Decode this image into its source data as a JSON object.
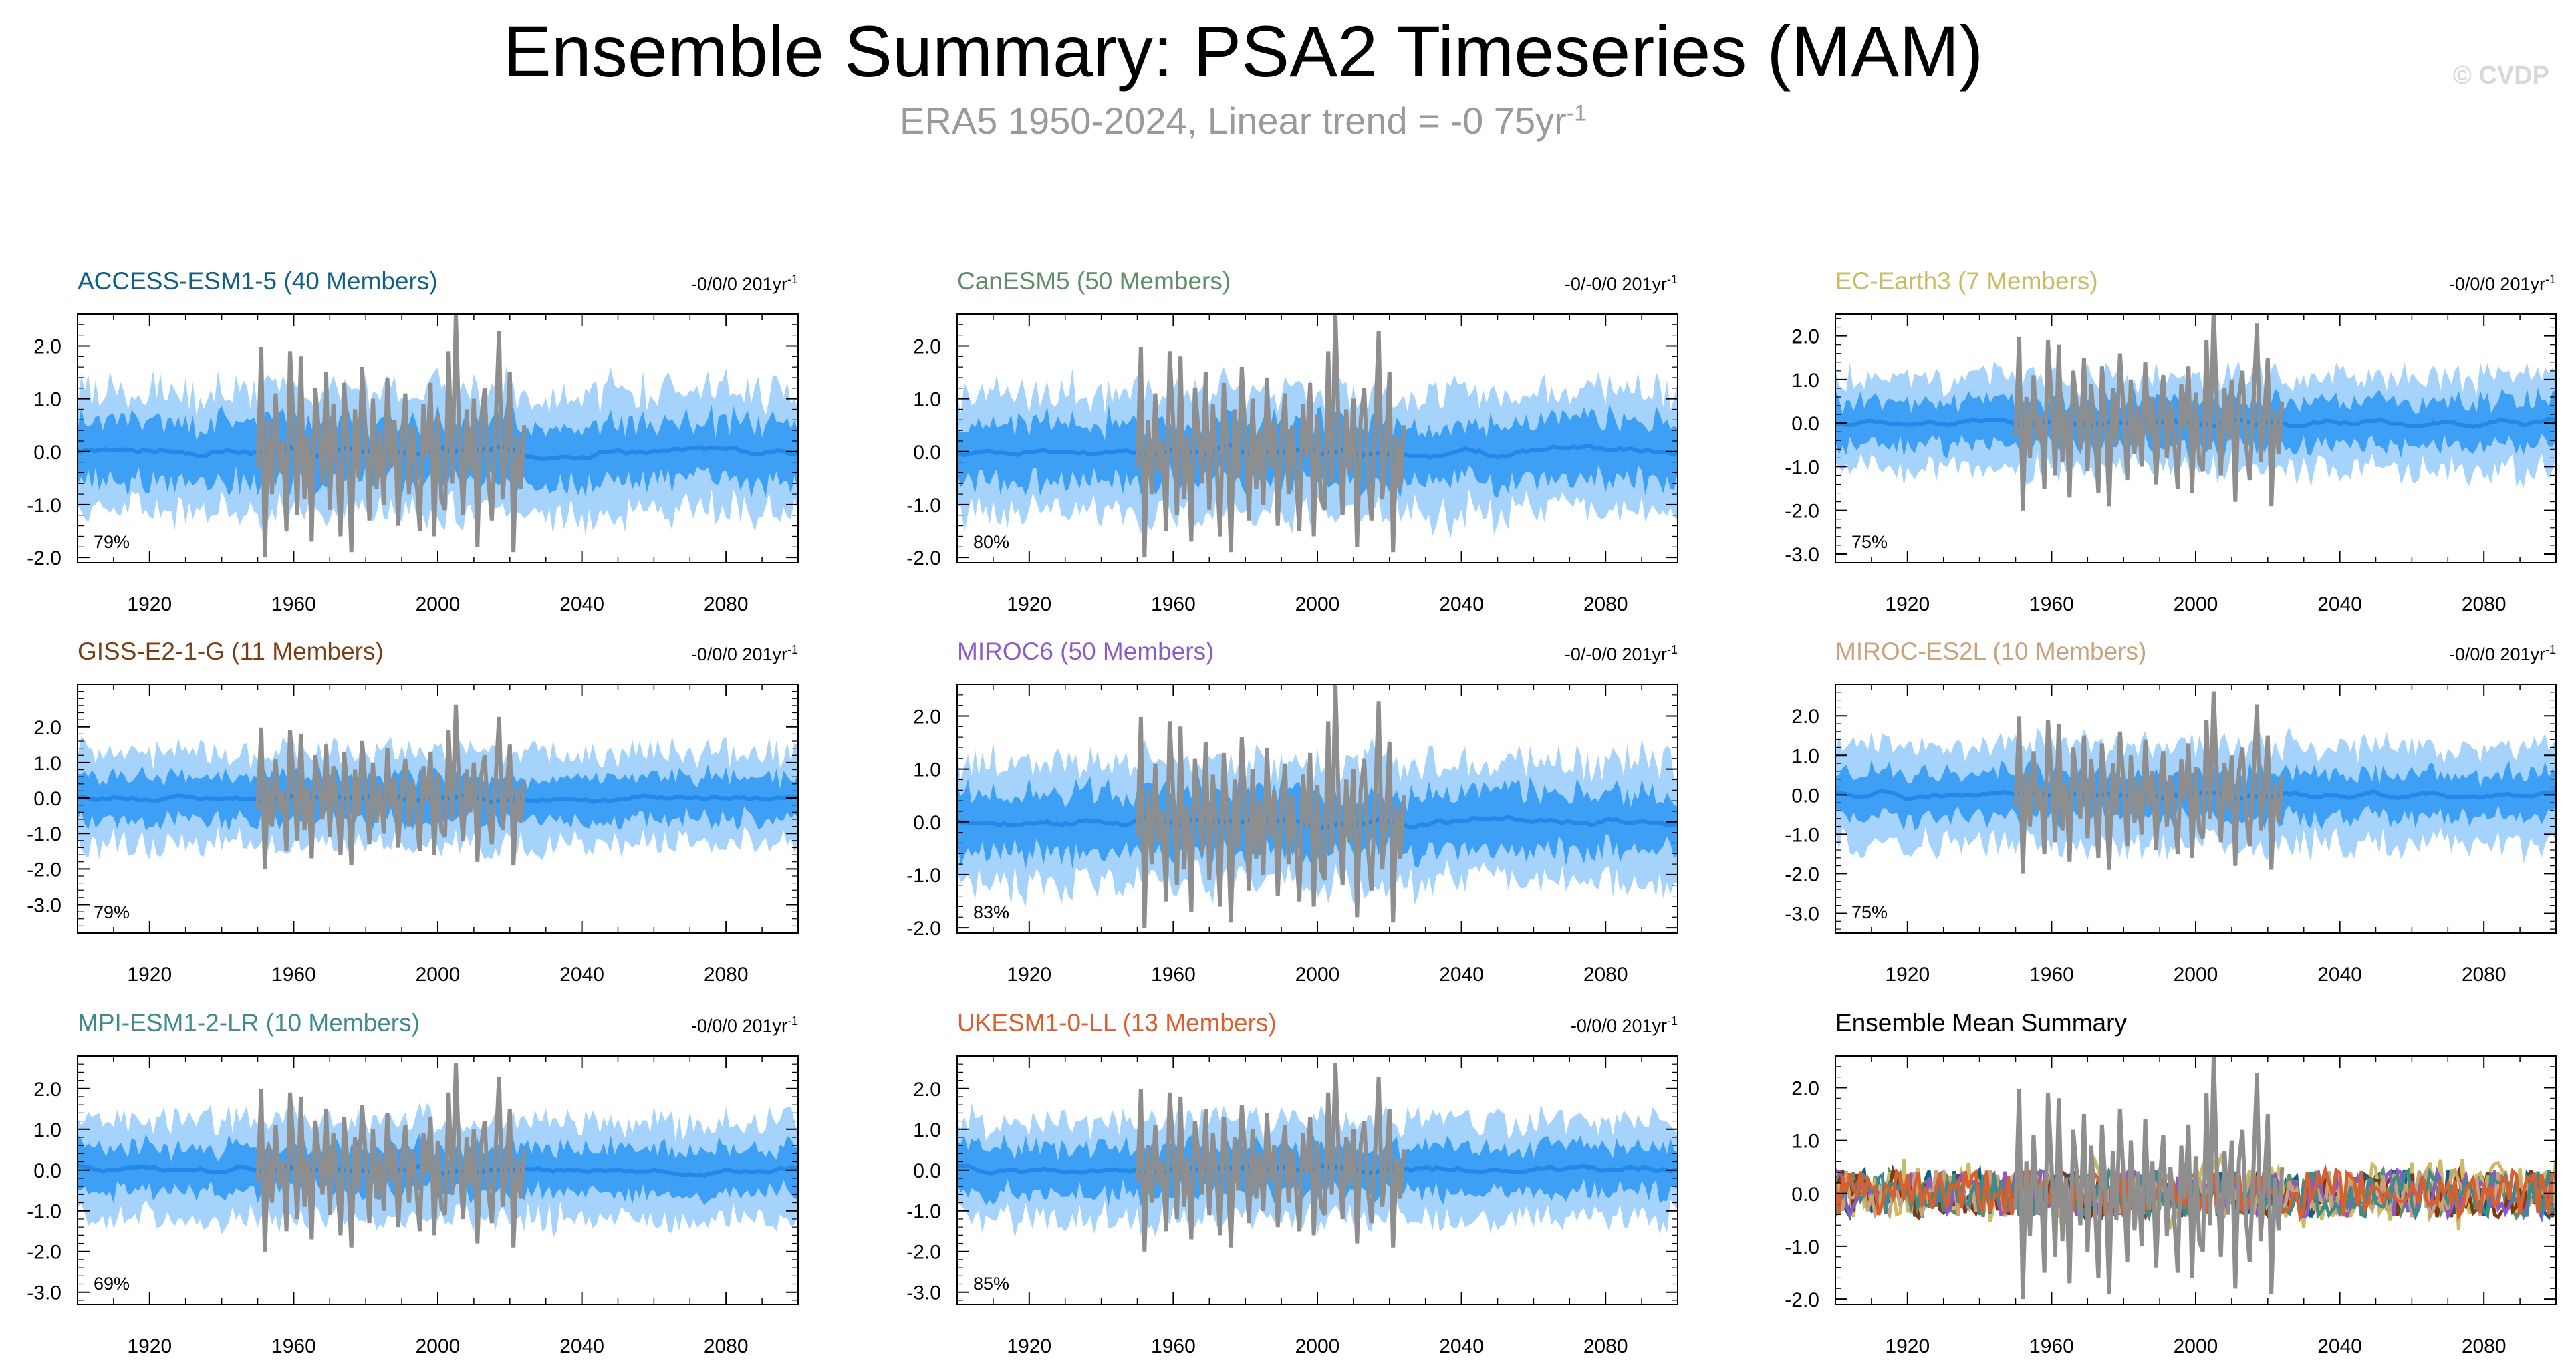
{
  "title": "Ensemble Summary: PSA2 Timeseries (MAM)",
  "subtitle": "ERA5 1950-2024, Linear trend = -0 75yr",
  "subtitle_sup": "-1",
  "copyright": "© CVDP",
  "trend_sup": "-1",
  "colors": {
    "outer_band": "#a6d3fb",
    "inner_band": "#3ea0f5",
    "ens_mean": "#2388e8",
    "obs": "#8e8e8e"
  },
  "chart_data": [
    {
      "type": "area",
      "title": "ACCESS-ESM1-5 (40 Members)",
      "title_color": "#0e5f85",
      "trend_label": "-0/0/0 201yr",
      "percent": "79%",
      "xlim": [
        1900,
        2100
      ],
      "ylim": [
        -2.1,
        2.6
      ],
      "yticks": [
        2,
        1,
        0,
        -1,
        -2
      ],
      "ytick_labels": [
        "2.0",
        "1.0",
        "0.0",
        "-1.0",
        "-2.0"
      ],
      "xticks": [
        1920,
        1960,
        2000,
        2040,
        2080
      ],
      "ens_mean_range": [
        1900,
        2100
      ],
      "obs_range": [
        1950,
        2024
      ],
      "inner_halfwidth": 0.55,
      "outer_halfwidth": 1.15,
      "seed": 3
    },
    {
      "type": "area",
      "title": "CanESM5 (50 Members)",
      "title_color": "#5e8d66",
      "trend_label": "-0/-0/0 201yr",
      "percent": "80%",
      "xlim": [
        1900,
        2100
      ],
      "ylim": [
        -2.1,
        2.6
      ],
      "yticks": [
        2,
        1,
        0,
        -1,
        -2
      ],
      "ytick_labels": [
        "2.0",
        "1.0",
        "0.0",
        "-1.0",
        "-2.0"
      ],
      "xticks": [
        1920,
        1960,
        2000,
        2040,
        2080
      ],
      "ens_mean_range": [
        1900,
        2100
      ],
      "obs_range": [
        1950,
        2024
      ],
      "inner_halfwidth": 0.55,
      "outer_halfwidth": 1.15,
      "seed": 7
    },
    {
      "type": "area",
      "title": "EC-Earth3 (7 Members)",
      "title_color": "#c9bc64",
      "trend_label": "-0/0/0 201yr",
      "percent": "75%",
      "xlim": [
        1900,
        2100
      ],
      "ylim": [
        -3.2,
        2.5
      ],
      "yticks": [
        2,
        1,
        0,
        -1,
        -2,
        -3
      ],
      "ytick_labels": [
        "2.0",
        "1.0",
        "0.0",
        "-1.0",
        "-2.0",
        "-3.0"
      ],
      "xticks": [
        1920,
        1960,
        2000,
        2040,
        2080
      ],
      "ens_mean_range": [
        1900,
        2100
      ],
      "obs_range": [
        1950,
        2024
      ],
      "inner_halfwidth": 0.5,
      "outer_halfwidth": 1.05,
      "seed": 11
    },
    {
      "type": "area",
      "title": "GISS-E2-1-G (11 Members)",
      "title_color": "#7b3c14",
      "trend_label": "-0/0/0 201yr",
      "percent": "79%",
      "xlim": [
        1900,
        2100
      ],
      "ylim": [
        -3.8,
        3.2
      ],
      "yticks": [
        2,
        1,
        0,
        -1,
        -2,
        -3
      ],
      "ytick_labels": [
        "2.0",
        "1.0",
        "0.0",
        "-1.0",
        "-2.0",
        "-3.0"
      ],
      "xticks": [
        1920,
        1960,
        2000,
        2040,
        2080
      ],
      "ens_mean_range": [
        1900,
        2100
      ],
      "obs_range": [
        1950,
        2024
      ],
      "inner_halfwidth": 0.6,
      "outer_halfwidth": 1.3,
      "seed": 13
    },
    {
      "type": "area",
      "title": "MIROC6 (50 Members)",
      "title_color": "#8a5ac9",
      "trend_label": "-0/-0/0 201yr",
      "percent": "83%",
      "xlim": [
        1900,
        2100
      ],
      "ylim": [
        -2.1,
        2.6
      ],
      "yticks": [
        2,
        1,
        0,
        -1,
        -2
      ],
      "ytick_labels": [
        "2.0",
        "1.0",
        "0.0",
        "-1.0",
        "-2.0"
      ],
      "xticks": [
        1920,
        1960,
        2000,
        2040,
        2080
      ],
      "ens_mean_range": [
        1900,
        2100
      ],
      "obs_range": [
        1950,
        2024
      ],
      "inner_halfwidth": 0.55,
      "outer_halfwidth": 1.15,
      "seed": 17
    },
    {
      "type": "area",
      "title": "MIROC-ES2L (10 Members)",
      "title_color": "#c9a27a",
      "trend_label": "-0/0/0 201yr",
      "percent": "75%",
      "xlim": [
        1900,
        2100
      ],
      "ylim": [
        -3.5,
        2.8
      ],
      "yticks": [
        2,
        1,
        0,
        -1,
        -2,
        -3
      ],
      "ytick_labels": [
        "2.0",
        "1.0",
        "0.0",
        "-1.0",
        "-2.0",
        "-3.0"
      ],
      "xticks": [
        1920,
        1960,
        2000,
        2040,
        2080
      ],
      "ens_mean_range": [
        1900,
        2100
      ],
      "obs_range": [
        1950,
        2024
      ],
      "inner_halfwidth": 0.55,
      "outer_halfwidth": 1.25,
      "seed": 19
    },
    {
      "type": "area",
      "title": "MPI-ESM1-2-LR (10 Members)",
      "title_color": "#3f8a8a",
      "trend_label": "-0/0/0 201yr",
      "percent": "69%",
      "xlim": [
        1900,
        2100
      ],
      "ylim": [
        -3.3,
        2.8
      ],
      "yticks": [
        2,
        1,
        0,
        -1,
        -2,
        -3
      ],
      "ytick_labels": [
        "2.0",
        "1.0",
        "0.0",
        "-1.0",
        "-2.0",
        "-3.0"
      ],
      "xticks": [
        1920,
        1960,
        2000,
        2040,
        2080
      ],
      "ens_mean_range": [
        1900,
        2100
      ],
      "obs_range": [
        1950,
        2024
      ],
      "inner_halfwidth": 0.55,
      "outer_halfwidth": 1.2,
      "seed": 23
    },
    {
      "type": "area",
      "title": "UKESM1-0-LL (13 Members)",
      "title_color": "#d9602e",
      "trend_label": "-0/0/0 201yr",
      "percent": "85%",
      "xlim": [
        1900,
        2100
      ],
      "ylim": [
        -3.3,
        2.8
      ],
      "yticks": [
        2,
        1,
        0,
        -1,
        -2,
        -3
      ],
      "ytick_labels": [
        "2.0",
        "1.0",
        "0.0",
        "-1.0",
        "-2.0",
        "-3.0"
      ],
      "xticks": [
        1920,
        1960,
        2000,
        2040,
        2080
      ],
      "ens_mean_range": [
        1900,
        2100
      ],
      "obs_range": [
        1950,
        2024
      ],
      "inner_halfwidth": 0.55,
      "outer_halfwidth": 1.2,
      "seed": 29
    },
    {
      "type": "line",
      "title": "Ensemble Mean Summary",
      "title_color": "#000000",
      "xlim": [
        1900,
        2100
      ],
      "ylim": [
        -2.1,
        2.6
      ],
      "yticks": [
        2,
        1,
        0,
        -1,
        -2
      ],
      "ytick_labels": [
        "2.0",
        "1.0",
        "0.0",
        "-1.0",
        "-2.0"
      ],
      "xticks": [
        1920,
        1960,
        2000,
        2040,
        2080
      ],
      "obs_range": [
        1950,
        2024
      ],
      "series": [
        {
          "name": "ACCESS-ESM1-5",
          "color": "#0e5f85",
          "seed": 31
        },
        {
          "name": "CanESM5",
          "color": "#5e8d66",
          "seed": 37
        },
        {
          "name": "EC-Earth3",
          "color": "#c9bc64",
          "seed": 41
        },
        {
          "name": "GISS-E2-1-G",
          "color": "#7b3c14",
          "seed": 43
        },
        {
          "name": "MIROC6",
          "color": "#8a5ac9",
          "seed": 47
        },
        {
          "name": "MIROC-ES2L",
          "color": "#c9a27a",
          "seed": 53
        },
        {
          "name": "MPI-ESM1-2-LR",
          "color": "#3f8a8a",
          "seed": 59
        },
        {
          "name": "UKESM1-0-LL",
          "color": "#d9602e",
          "seed": 61
        }
      ]
    }
  ],
  "obs_series": {
    "years_start": 1950,
    "values": [
      -0.3,
      1.98,
      -2.0,
      0.6,
      -0.8,
      1.1,
      -0.4,
      0.2,
      -1.5,
      1.9,
      0.5,
      -1.2,
      1.8,
      -0.9,
      0.3,
      -1.7,
      1.2,
      0.4,
      -0.6,
      1.5,
      -1.1,
      0.9,
      -0.2,
      -1.6,
      1.3,
      0.1,
      -1.9,
      0.8,
      -0.5,
      1.6,
      0.3,
      -1.3,
      1.0,
      -0.7,
      0.4,
      -1.0,
      1.4,
      -0.3,
      0.6,
      -1.4,
      0.2,
      1.1,
      -0.8,
      0.5,
      -0.4,
      -1.5,
      0.9,
      -0.1,
      1.3,
      -1.6,
      0.7,
      -0.9,
      -1.1,
      1.9,
      -0.6,
      2.62,
      0.2,
      -1.2,
      0.8,
      -0.4,
      1.0,
      -1.8,
      0.6,
      1.2,
      -0.5,
      -1.3,
      0.4,
      2.28,
      -0.9,
      0.1,
      1.5,
      -1.9,
      0.3,
      -0.7,
      0.5
    ]
  }
}
